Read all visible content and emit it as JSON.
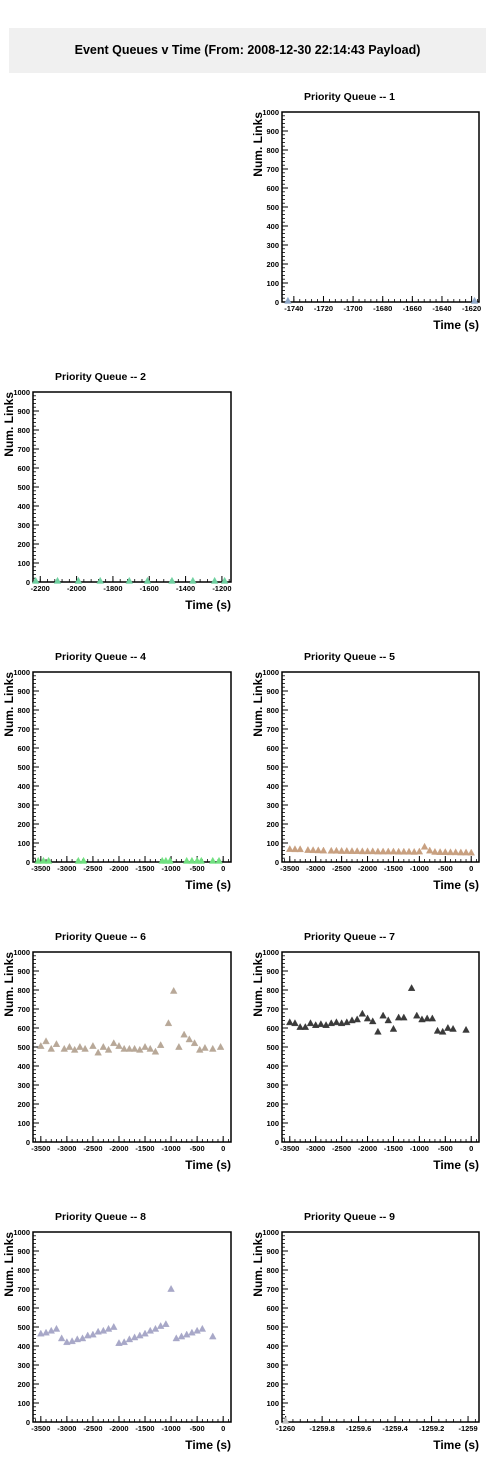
{
  "page_title": "Event Queues v Time (From: 2008-12-30 22:14:43 Payload)",
  "chart_data": [
    {
      "type": "scatter",
      "title": "Priority Queue -- 1",
      "xlabel": "Time (s)",
      "ylabel": "Num. Links",
      "xlim": [
        -1748,
        -1615
      ],
      "ylim": [
        0,
        1000
      ],
      "xticks": [
        -1740,
        -1720,
        -1700,
        -1680,
        -1660,
        -1640,
        -1620
      ],
      "xticklabels": [
        "-1740",
        "-1720",
        "-1700",
        "-1680",
        "-1660",
        "-1640",
        "-1620"
      ],
      "yticks": [
        0,
        100,
        200,
        300,
        400,
        500,
        600,
        700,
        800,
        900,
        1000
      ],
      "series": [
        {
          "color": "#8fa8c8",
          "points": [
            [
              -1744,
              6
            ],
            [
              -1618,
              6
            ]
          ]
        }
      ]
    },
    {
      "type": "scatter",
      "title": "Priority Queue -- 2",
      "xlabel": "Time (s)",
      "ylabel": "Num. Links",
      "xlim": [
        -2240,
        -1150
      ],
      "ylim": [
        0,
        1000
      ],
      "xticks": [
        -2200,
        -2000,
        -1800,
        -1600,
        -1400,
        -1200
      ],
      "xticklabels": [
        "-2200",
        "-2000",
        "-1800",
        "-1600",
        "-1400",
        "-1200"
      ],
      "yticks": [
        0,
        100,
        200,
        300,
        400,
        500,
        600,
        700,
        800,
        900,
        1000
      ],
      "series": [
        {
          "color": "#6fd0a0",
          "points": [
            [
              -2225,
              6
            ],
            [
              -2105,
              6
            ],
            [
              -1990,
              6
            ],
            [
              -1870,
              6
            ],
            [
              -1710,
              6
            ],
            [
              -1610,
              6
            ],
            [
              -1475,
              6
            ],
            [
              -1360,
              6
            ],
            [
              -1240,
              6
            ],
            [
              -1185,
              6
            ]
          ]
        }
      ]
    },
    {
      "type": "scatter",
      "title": "Priority Queue -- 4",
      "xlabel": "Time (s)",
      "ylabel": "Num. Links",
      "xlim": [
        -3650,
        150
      ],
      "ylim": [
        0,
        1000
      ],
      "xticks": [
        -3500,
        -3000,
        -2500,
        -2000,
        -1500,
        -1000,
        -500,
        0
      ],
      "xticklabels": [
        "-3500",
        "-3000",
        "-2500",
        "-2000",
        "-1500",
        "-1000",
        "-500",
        "0"
      ],
      "yticks": [
        0,
        100,
        200,
        300,
        400,
        500,
        600,
        700,
        800,
        900,
        1000
      ],
      "series": [
        {
          "color": "#70e080",
          "points": [
            [
              -3550,
              6
            ],
            [
              -3450,
              6
            ],
            [
              -3350,
              6
            ],
            [
              -2780,
              6
            ],
            [
              -2680,
              6
            ],
            [
              -1170,
              6
            ],
            [
              -1100,
              6
            ],
            [
              -1020,
              6
            ],
            [
              -700,
              6
            ],
            [
              -600,
              6
            ],
            [
              -500,
              6
            ],
            [
              -420,
              6
            ],
            [
              -200,
              6
            ],
            [
              -80,
              6
            ]
          ]
        }
      ]
    },
    {
      "type": "scatter",
      "title": "Priority Queue -- 5",
      "xlabel": "Time (s)",
      "ylabel": "Num. Links",
      "xlim": [
        -3650,
        150
      ],
      "ylim": [
        0,
        1000
      ],
      "xticks": [
        -3500,
        -3000,
        -2500,
        -2000,
        -1500,
        -1000,
        -500,
        0
      ],
      "xticklabels": [
        "-3500",
        "-3000",
        "-2500",
        "-2000",
        "-1500",
        "-1000",
        "-500",
        "0"
      ],
      "yticks": [
        0,
        100,
        200,
        300,
        400,
        500,
        600,
        700,
        800,
        900,
        1000
      ],
      "series": [
        {
          "color": "#c8a080",
          "points": [
            [
              -3500,
              68
            ],
            [
              -3400,
              67
            ],
            [
              -3300,
              67
            ],
            [
              -3150,
              63
            ],
            [
              -3050,
              62
            ],
            [
              -2950,
              61
            ],
            [
              -2850,
              60
            ],
            [
              -2700,
              59
            ],
            [
              -2600,
              59
            ],
            [
              -2500,
              58
            ],
            [
              -2400,
              58
            ],
            [
              -2300,
              57
            ],
            [
              -2200,
              57
            ],
            [
              -2100,
              56
            ],
            [
              -2000,
              56
            ],
            [
              -1900,
              56
            ],
            [
              -1800,
              55
            ],
            [
              -1700,
              55
            ],
            [
              -1600,
              55
            ],
            [
              -1500,
              55
            ],
            [
              -1400,
              54
            ],
            [
              -1300,
              54
            ],
            [
              -1200,
              54
            ],
            [
              -1100,
              53
            ],
            [
              -1000,
              55
            ],
            [
              -900,
              80
            ],
            [
              -800,
              60
            ],
            [
              -700,
              53
            ],
            [
              -600,
              52
            ],
            [
              -500,
              52
            ],
            [
              -400,
              51
            ],
            [
              -300,
              51
            ],
            [
              -200,
              50
            ],
            [
              -100,
              50
            ],
            [
              0,
              49
            ]
          ]
        }
      ]
    },
    {
      "type": "scatter",
      "title": "Priority Queue -- 6",
      "xlabel": "Time (s)",
      "ylabel": "Num. Links",
      "xlim": [
        -3650,
        150
      ],
      "ylim": [
        0,
        1000
      ],
      "xticks": [
        -3500,
        -3000,
        -2500,
        -2000,
        -1500,
        -1000,
        -500,
        0
      ],
      "xticklabels": [
        "-3500",
        "-3000",
        "-2500",
        "-2000",
        "-1500",
        "-1000",
        "-500",
        "0"
      ],
      "yticks": [
        0,
        100,
        200,
        300,
        400,
        500,
        600,
        700,
        800,
        900,
        1000
      ],
      "series": [
        {
          "color": "#b8a898",
          "points": [
            [
              -3500,
              505
            ],
            [
              -3400,
              530
            ],
            [
              -3300,
              490
            ],
            [
              -3200,
              515
            ],
            [
              -3050,
              490
            ],
            [
              -2950,
              500
            ],
            [
              -2850,
              485
            ],
            [
              -2750,
              500
            ],
            [
              -2650,
              490
            ],
            [
              -2500,
              505
            ],
            [
              -2400,
              470
            ],
            [
              -2300,
              500
            ],
            [
              -2200,
              485
            ],
            [
              -2100,
              520
            ],
            [
              -2000,
              505
            ],
            [
              -1900,
              490
            ],
            [
              -1800,
              490
            ],
            [
              -1700,
              490
            ],
            [
              -1600,
              485
            ],
            [
              -1500,
              500
            ],
            [
              -1400,
              490
            ],
            [
              -1300,
              475
            ],
            [
              -1200,
              510
            ],
            [
              -1050,
              625
            ],
            [
              -950,
              795
            ],
            [
              -850,
              500
            ],
            [
              -750,
              565
            ],
            [
              -650,
              540
            ],
            [
              -550,
              520
            ],
            [
              -450,
              485
            ],
            [
              -350,
              495
            ],
            [
              -200,
              490
            ],
            [
              -50,
              500
            ]
          ]
        }
      ]
    },
    {
      "type": "scatter",
      "title": "Priority Queue -- 7",
      "xlabel": "Time (s)",
      "ylabel": "Num. Links",
      "xlim": [
        -3650,
        150
      ],
      "ylim": [
        0,
        1000
      ],
      "xticks": [
        -3500,
        -3000,
        -2500,
        -2000,
        -1500,
        -1000,
        -500,
        0
      ],
      "xticklabels": [
        "-3500",
        "-3000",
        "-2500",
        "-2000",
        "-1500",
        "-1000",
        "-500",
        "0"
      ],
      "yticks": [
        0,
        100,
        200,
        300,
        400,
        500,
        600,
        700,
        800,
        900,
        1000
      ],
      "series": [
        {
          "color": "#3a3a3a",
          "points": [
            [
              -3500,
              630
            ],
            [
              -3400,
              625
            ],
            [
              -3300,
              605
            ],
            [
              -3200,
              605
            ],
            [
              -3100,
              625
            ],
            [
              -3000,
              615
            ],
            [
              -2900,
              620
            ],
            [
              -2800,
              615
            ],
            [
              -2700,
              625
            ],
            [
              -2600,
              630
            ],
            [
              -2500,
              625
            ],
            [
              -2400,
              630
            ],
            [
              -2300,
              640
            ],
            [
              -2200,
              645
            ],
            [
              -2100,
              675
            ],
            [
              -2000,
              650
            ],
            [
              -1900,
              635
            ],
            [
              -1800,
              580
            ],
            [
              -1700,
              665
            ],
            [
              -1600,
              640
            ],
            [
              -1500,
              595
            ],
            [
              -1400,
              655
            ],
            [
              -1300,
              655
            ],
            [
              -1150,
              810
            ],
            [
              -1050,
              665
            ],
            [
              -950,
              645
            ],
            [
              -850,
              650
            ],
            [
              -750,
              650
            ],
            [
              -650,
              585
            ],
            [
              -550,
              580
            ],
            [
              -450,
              600
            ],
            [
              -350,
              595
            ],
            [
              -100,
              590
            ]
          ]
        }
      ]
    },
    {
      "type": "scatter",
      "title": "Priority Queue -- 8",
      "xlabel": "Time (s)",
      "ylabel": "Num. Links",
      "xlim": [
        -3650,
        150
      ],
      "ylim": [
        0,
        1000
      ],
      "xticks": [
        -3500,
        -3000,
        -2500,
        -2000,
        -1500,
        -1000,
        -500,
        0
      ],
      "xticklabels": [
        "-3500",
        "-3000",
        "-2500",
        "-2000",
        "-1500",
        "-1000",
        "-500",
        "0"
      ],
      "yticks": [
        0,
        100,
        200,
        300,
        400,
        500,
        600,
        700,
        800,
        900,
        1000
      ],
      "series": [
        {
          "color": "#a8a8c8",
          "points": [
            [
              -3500,
              465
            ],
            [
              -3400,
              470
            ],
            [
              -3300,
              480
            ],
            [
              -3200,
              490
            ],
            [
              -3100,
              440
            ],
            [
              -3000,
              420
            ],
            [
              -2900,
              425
            ],
            [
              -2800,
              435
            ],
            [
              -2700,
              440
            ],
            [
              -2600,
              455
            ],
            [
              -2500,
              460
            ],
            [
              -2400,
              475
            ],
            [
              -2300,
              480
            ],
            [
              -2200,
              490
            ],
            [
              -2100,
              500
            ],
            [
              -2000,
              415
            ],
            [
              -1900,
              420
            ],
            [
              -1800,
              435
            ],
            [
              -1700,
              445
            ],
            [
              -1600,
              455
            ],
            [
              -1500,
              465
            ],
            [
              -1400,
              480
            ],
            [
              -1300,
              490
            ],
            [
              -1200,
              505
            ],
            [
              -1100,
              515
            ],
            [
              -1000,
              700
            ],
            [
              -900,
              440
            ],
            [
              -800,
              450
            ],
            [
              -700,
              460
            ],
            [
              -600,
              470
            ],
            [
              -500,
              480
            ],
            [
              -400,
              490
            ],
            [
              -200,
              450
            ]
          ]
        }
      ]
    },
    {
      "type": "scatter",
      "title": "Priority Queue -- 9",
      "xlabel": "Time (s)",
      "ylabel": "Num. Links",
      "xlim": [
        -1260.02,
        -1258.94
      ],
      "ylim": [
        0,
        1000
      ],
      "xticks": [
        -1260,
        -1259.8,
        -1259.6,
        -1259.4,
        -1259.2,
        -1259
      ],
      "xticklabels": [
        "-1260",
        "-1259.8",
        "-1259.6",
        "-1259.4",
        "-1259.2",
        "-1259"
      ],
      "yticks": [
        0,
        100,
        200,
        300,
        400,
        500,
        600,
        700,
        800,
        900,
        1000
      ],
      "series": [
        {
          "color": "#c0c0c0",
          "points": [
            [
              -1260,
              6
            ]
          ]
        }
      ]
    }
  ]
}
